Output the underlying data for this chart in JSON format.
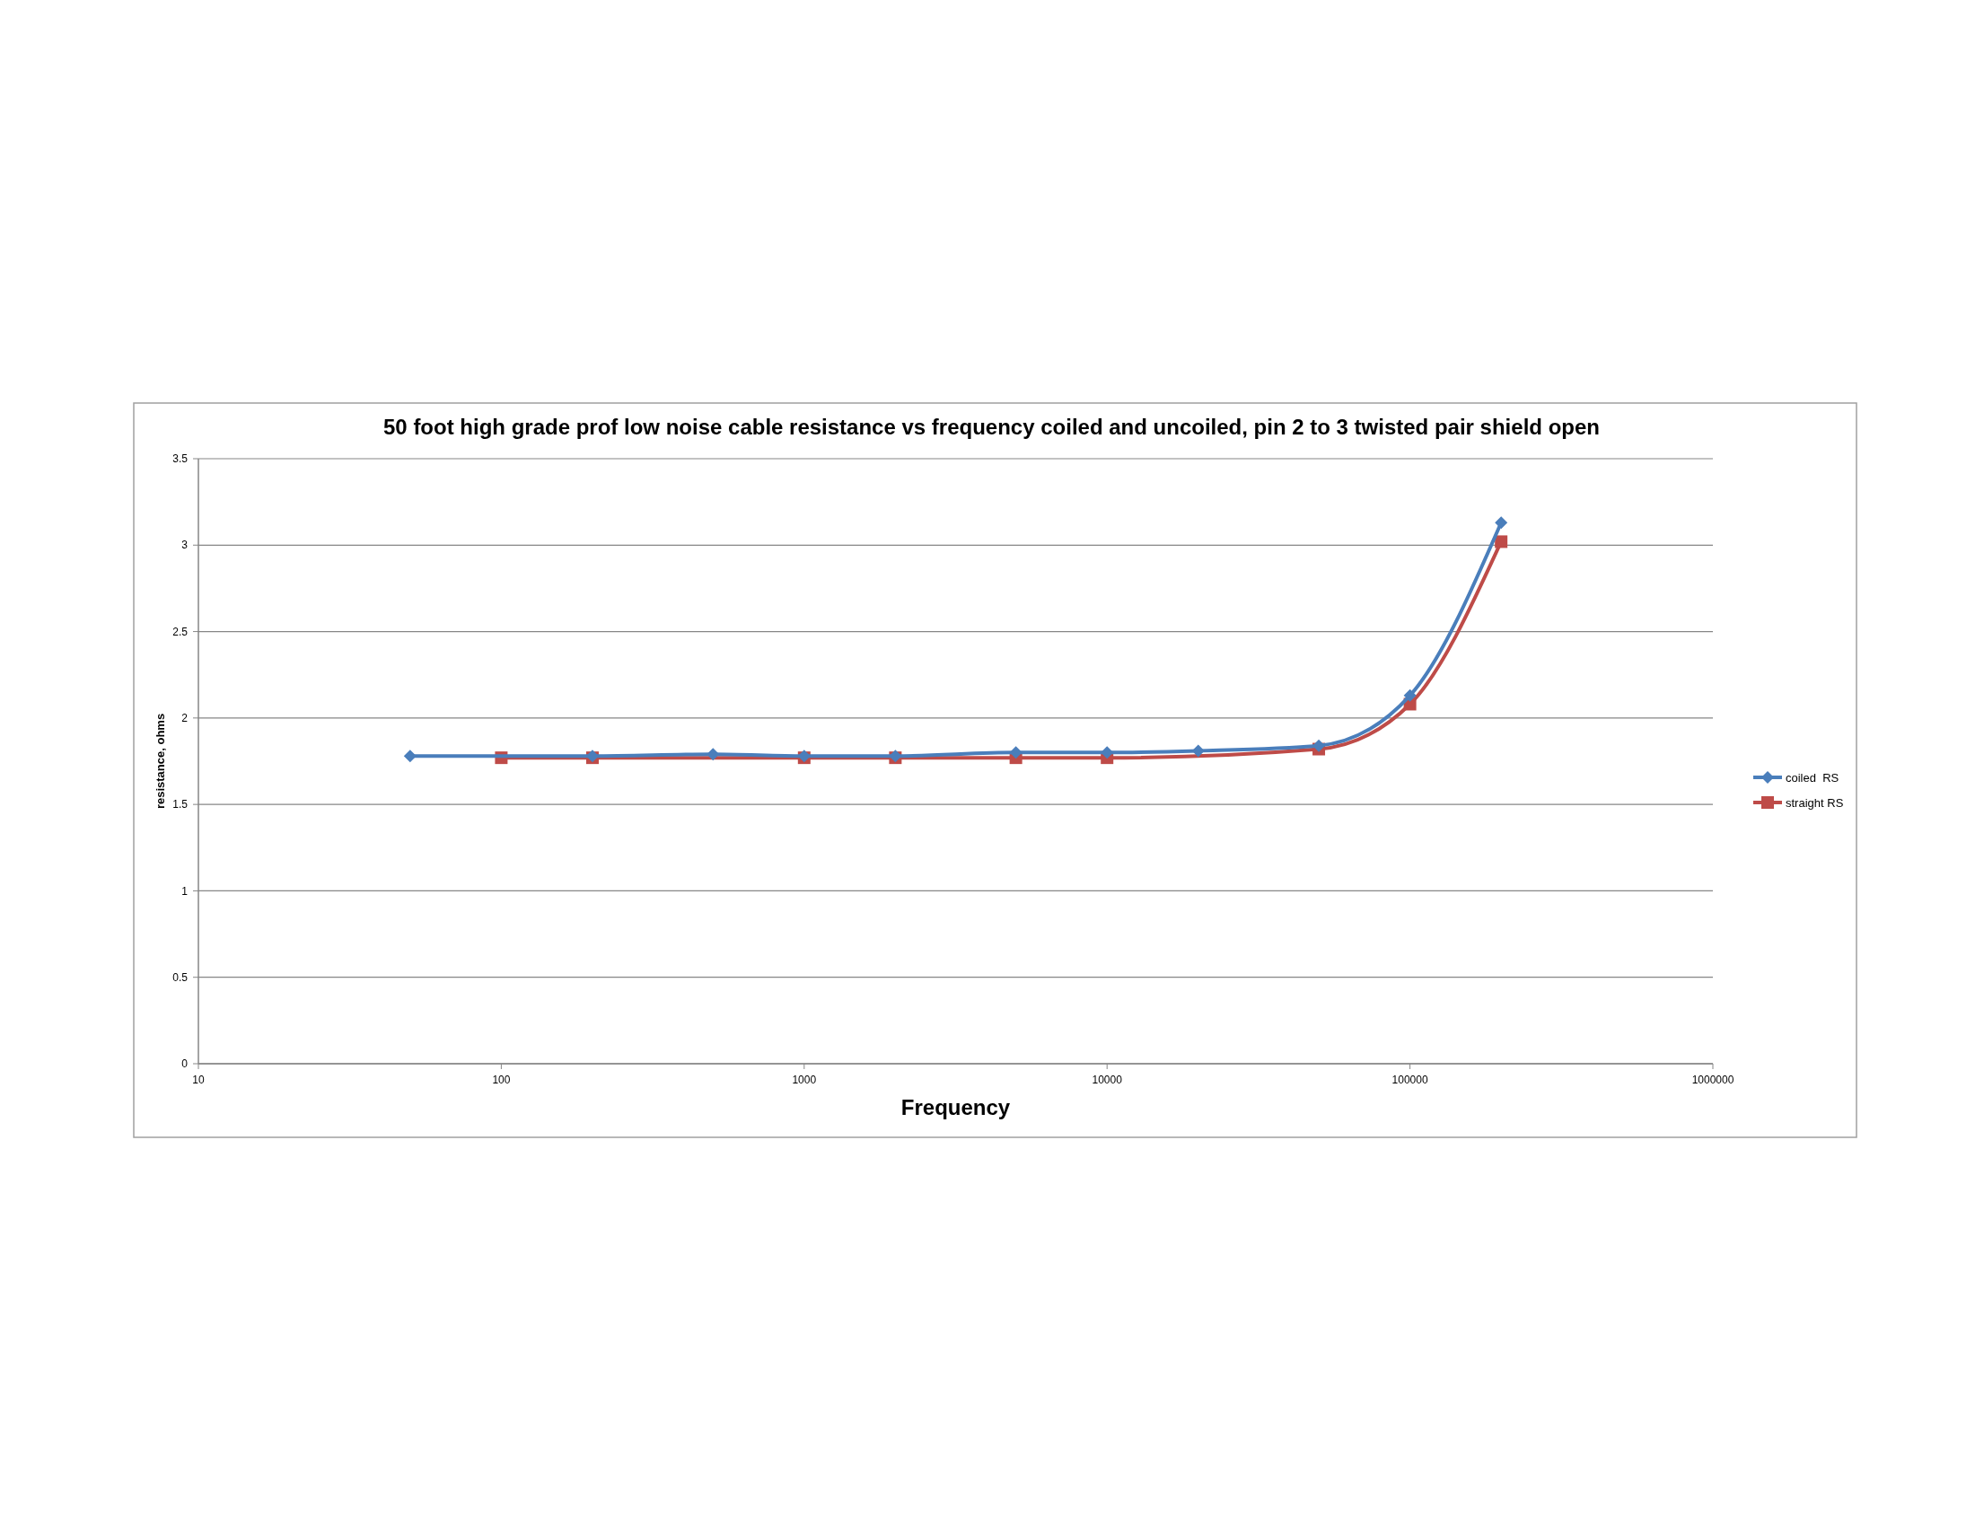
{
  "chart_data": {
    "type": "line",
    "title": "50 foot high grade prof low noise cable resistance vs frequency coiled and uncoiled, pin 2 to 3 twisted pair shield open",
    "xlabel": "Frequency",
    "ylabel": "resistance, ohms",
    "log": "x",
    "xlim": [
      10,
      1000000
    ],
    "xticks": [
      10,
      100,
      1000,
      10000,
      100000,
      1000000
    ],
    "ylim": [
      0,
      3.5
    ],
    "yticks": [
      0,
      0.5,
      1,
      1.5,
      2,
      2.5,
      3,
      3.5
    ],
    "grid": "y",
    "legend": "right",
    "line_style": "solid",
    "series": [
      {
        "name": "coiled  RS",
        "color": "#4a7ebb",
        "marker": "diamond",
        "x": [
          50,
          200,
          500,
          1000,
          2000,
          5000,
          10000,
          20000,
          50000,
          100000,
          200000
        ],
        "values": [
          1.78,
          1.78,
          1.79,
          1.78,
          1.78,
          1.8,
          1.8,
          1.81,
          1.84,
          2.13,
          3.13
        ]
      },
      {
        "name": "straight RS",
        "color": "#be4b48",
        "marker": "square",
        "x": [
          100,
          200,
          1000,
          2000,
          5000,
          10000,
          50000,
          100000,
          200000
        ],
        "values": [
          1.77,
          1.77,
          1.77,
          1.77,
          1.77,
          1.77,
          1.82,
          2.08,
          3.02
        ]
      }
    ]
  }
}
